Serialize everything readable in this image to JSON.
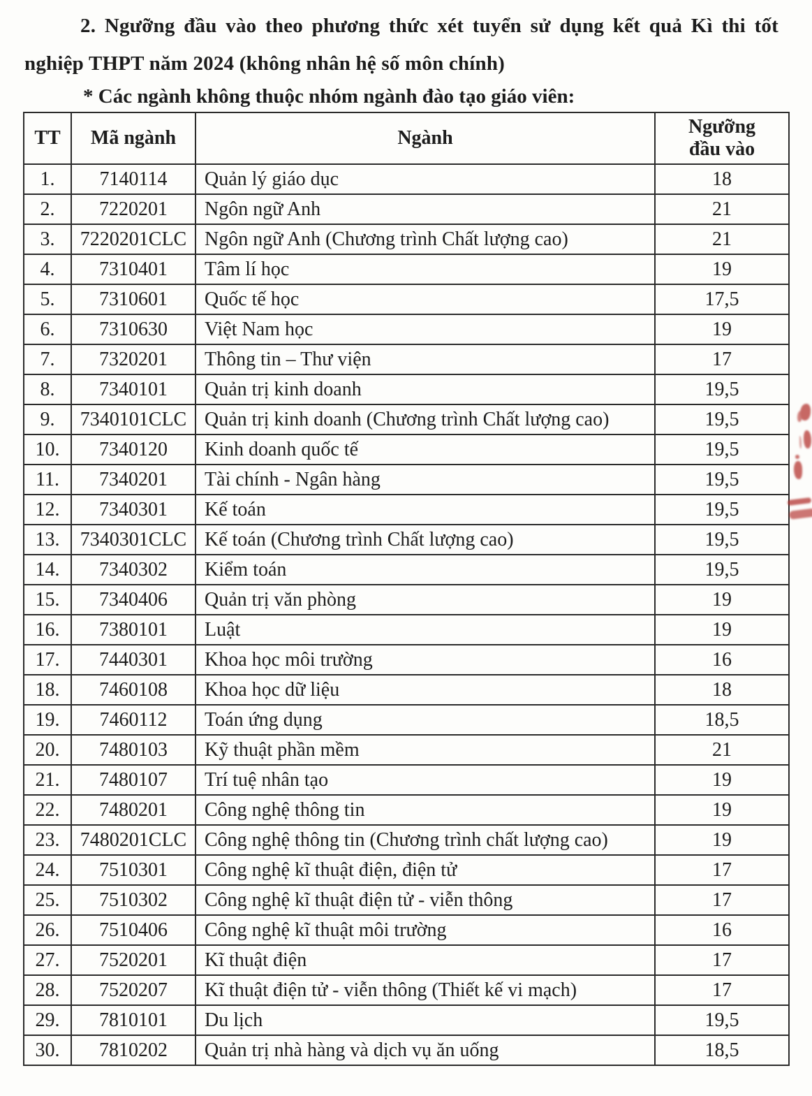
{
  "page": {
    "heading_line1": "2. Ngưỡng đầu vào theo phương thức xét tuyển sử dụng kết quả Kì thi tốt",
    "heading_line2": "nghiệp THPT năm 2024 (không nhân hệ số môn chính)",
    "note": "* Các ngành không thuộc nhóm ngành đào tạo giáo viên:"
  },
  "table": {
    "header": {
      "tt": "TT",
      "code": "Mã ngành",
      "major": "Ngành",
      "threshold_line1": "Ngưỡng",
      "threshold_line2": "đầu vào"
    },
    "rows": [
      [
        "1.",
        "7140114",
        "Quản lý giáo dục",
        "18"
      ],
      [
        "2.",
        "7220201",
        "Ngôn ngữ Anh",
        "21"
      ],
      [
        "3.",
        "7220201CLC",
        "Ngôn ngữ Anh (Chương trình Chất lượng cao)",
        "21"
      ],
      [
        "4.",
        "7310401",
        "Tâm lí học",
        "19"
      ],
      [
        "5.",
        "7310601",
        "Quốc tế học",
        "17,5"
      ],
      [
        "6.",
        "7310630",
        "Việt Nam học",
        "19"
      ],
      [
        "7.",
        "7320201",
        "Thông tin – Thư viện",
        "17"
      ],
      [
        "8.",
        "7340101",
        "Quản trị kinh doanh",
        "19,5"
      ],
      [
        "9.",
        "7340101CLC",
        "Quản trị kinh doanh (Chương trình Chất lượng cao)",
        "19,5"
      ],
      [
        "10.",
        "7340120",
        "Kinh doanh quốc tế",
        "19,5"
      ],
      [
        "11.",
        "7340201",
        "Tài chính - Ngân hàng",
        "19,5"
      ],
      [
        "12.",
        "7340301",
        "Kế toán",
        "19,5"
      ],
      [
        "13.",
        "7340301CLC",
        "Kế toán (Chương trình Chất lượng cao)",
        "19,5"
      ],
      [
        "14.",
        "7340302",
        "Kiểm toán",
        "19,5"
      ],
      [
        "15.",
        "7340406",
        "Quản trị văn phòng",
        "19"
      ],
      [
        "16.",
        "7380101",
        "Luật",
        "19"
      ],
      [
        "17.",
        "7440301",
        "Khoa học môi trường",
        "16"
      ],
      [
        "18.",
        "7460108",
        "Khoa học dữ liệu",
        "18"
      ],
      [
        "19.",
        "7460112",
        "Toán ứng dụng",
        "18,5"
      ],
      [
        "20.",
        "7480103",
        "Kỹ thuật phần mềm",
        "21"
      ],
      [
        "21.",
        "7480107",
        "Trí tuệ nhân tạo",
        "19"
      ],
      [
        "22.",
        "7480201",
        "Công nghệ thông tin",
        "19"
      ],
      [
        "23.",
        "7480201CLC",
        "Công nghệ thông tin (Chương trình chất lượng cao)",
        "19"
      ],
      [
        "24.",
        "7510301",
        "Công nghệ kĩ thuật điện, điện tử",
        "17"
      ],
      [
        "25.",
        "7510302",
        "Công nghệ kĩ thuật điện tử - viễn thông",
        "17"
      ],
      [
        "26.",
        "7510406",
        "Công nghệ kĩ thuật môi trường",
        "16"
      ],
      [
        "27.",
        "7520201",
        "Kĩ thuật điện",
        "17"
      ],
      [
        "28.",
        "7520207",
        "Kĩ thuật điện tử - viễn thông (Thiết kế vi mạch)",
        "17"
      ],
      [
        "29.",
        "7810101",
        "Du lịch",
        "19,5"
      ],
      [
        "30.",
        "7810202",
        "Quản trị nhà hàng và dịch vụ ăn uống",
        "18,5"
      ]
    ]
  },
  "artifacts": {
    "red_ink_color": "#b22e2a"
  }
}
